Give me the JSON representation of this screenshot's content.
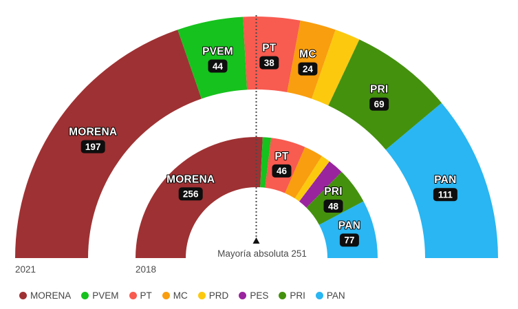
{
  "chart_data": {
    "type": "pie",
    "subtype": "hemicycle-double-ring",
    "title": "",
    "majority_marker": {
      "label": "Mayoría absoluta 251",
      "value": 251
    },
    "rings": [
      {
        "name": "2021",
        "year_label": "2021",
        "total_seats": 500,
        "segments": [
          {
            "party": "MORENA",
            "seats": 197,
            "color": "#9E3133",
            "labeled": true
          },
          {
            "party": "PVEM",
            "seats": 44,
            "color": "#16C21D",
            "labeled": true
          },
          {
            "party": "PT",
            "seats": 38,
            "color": "#F85B50",
            "labeled": true
          },
          {
            "party": "MC",
            "seats": 24,
            "color": "#F99E0E",
            "labeled": true
          },
          {
            "party": "PRD",
            "seats": 17,
            "color": "#FCC90F",
            "labeled": false
          },
          {
            "party": "PRI",
            "seats": 69,
            "color": "#44910E",
            "labeled": true
          },
          {
            "party": "PAN",
            "seats": 111,
            "color": "#29B6F2",
            "labeled": true
          }
        ]
      },
      {
        "name": "2018",
        "year_label": "2018",
        "total_seats": 496,
        "segments": [
          {
            "party": "MORENA",
            "seats": 256,
            "color": "#9E3133",
            "labeled": true
          },
          {
            "party": "PVEM",
            "seats": 11,
            "color": "#16C21D",
            "labeled": false
          },
          {
            "party": "PT",
            "seats": 46,
            "color": "#F85B50",
            "labeled": true
          },
          {
            "party": "MC",
            "seats": 25,
            "color": "#F99E0E",
            "labeled": false
          },
          {
            "party": "PRD",
            "seats": 12,
            "color": "#FCC90F",
            "labeled": false
          },
          {
            "party": "PES",
            "seats": 21,
            "color": "#99249E",
            "labeled": false
          },
          {
            "party": "PRI",
            "seats": 48,
            "color": "#44910E",
            "labeled": true
          },
          {
            "party": "PAN",
            "seats": 77,
            "color": "#29B6F2",
            "labeled": true
          }
        ]
      }
    ]
  },
  "legend": {
    "items": [
      {
        "label": "MORENA",
        "color": "#9E3133"
      },
      {
        "label": "PVEM",
        "color": "#16C21D"
      },
      {
        "label": "PT",
        "color": "#F85B50"
      },
      {
        "label": "MC",
        "color": "#F99E0E"
      },
      {
        "label": "PRD",
        "color": "#FCC90F"
      },
      {
        "label": "PES",
        "color": "#99249E"
      },
      {
        "label": "PRI",
        "color": "#44910E"
      },
      {
        "label": "PAN",
        "color": "#29B6F2"
      }
    ]
  },
  "colors": {
    "badge_bg": "#0E0E0E",
    "badge_text": "#FFFFFF",
    "segment_label_text": "#FFFFFF",
    "muted_text": "#4A4A4A",
    "marker_line": "#4A4A4A",
    "marker_triangle": "#111111",
    "background": "#FFFFFF"
  }
}
